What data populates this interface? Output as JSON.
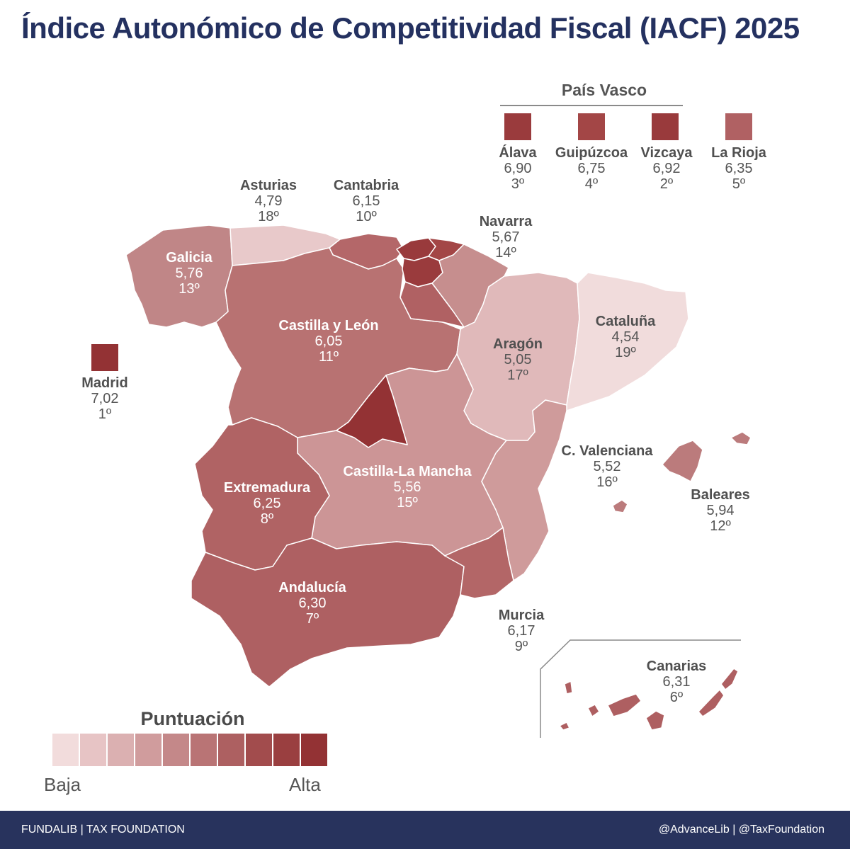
{
  "title": "Índice Autonómico de Competitividad Fiscal (IACF) 2025",
  "pais_vasco": {
    "title": "País Vasco",
    "provinces": [
      {
        "name": "Álava",
        "score": "6,90",
        "rank": "3º",
        "color": "#9a3b3d"
      },
      {
        "name": "Guipúzcoa",
        "score": "6,75",
        "rank": "4º",
        "color": "#a34646"
      },
      {
        "name": "Vizcaya",
        "score": "6,92",
        "rank": "2º",
        "color": "#993a3c"
      },
      {
        "name": "La Rioja",
        "score": "6,35",
        "rank": "5º",
        "color": "#b06163"
      }
    ]
  },
  "regions": {
    "galicia": {
      "name": "Galicia",
      "score": "5,76",
      "rank": "13º",
      "color": "#c08687"
    },
    "asturias": {
      "name": "Asturias",
      "score": "4,79",
      "rank": "18º",
      "color": "#e8c9ca"
    },
    "cantabria": {
      "name": "Cantabria",
      "score": "6,15",
      "rank": "10º",
      "color": "#b46769"
    },
    "navarra": {
      "name": "Navarra",
      "score": "5,67",
      "rank": "14º",
      "color": "#c68e8e"
    },
    "cyl": {
      "name": "Castilla y León",
      "score": "6,05",
      "rank": "11º",
      "color": "#b87272"
    },
    "aragon": {
      "name": "Aragón",
      "score": "5,05",
      "rank": "17º",
      "color": "#e0b9ba"
    },
    "cataluna": {
      "name": "Cataluña",
      "score": "4,54",
      "rank": "19º",
      "color": "#f1dcdc"
    },
    "madrid": {
      "name": "Madrid",
      "score": "7,02",
      "rank": "1º",
      "color": "#933234"
    },
    "clm": {
      "name": "Castilla-La Mancha",
      "score": "5,56",
      "rank": "15º",
      "color": "#cc9596"
    },
    "extremadura": {
      "name": "Extremadura",
      "score": "6,25",
      "rank": "8º",
      "color": "#b06364"
    },
    "valenciana": {
      "name": "C. Valenciana",
      "score": "5,52",
      "rank": "16º",
      "color": "#cf9b9b"
    },
    "baleares": {
      "name": "Baleares",
      "score": "5,94",
      "rank": "12º",
      "color": "#bb7b7c"
    },
    "andalucia": {
      "name": "Andalucía",
      "score": "6,30",
      "rank": "7º",
      "color": "#ae6062"
    },
    "murcia": {
      "name": "Murcia",
      "score": "6,17",
      "rank": "9º",
      "color": "#b36667"
    },
    "canarias": {
      "name": "Canarias",
      "score": "6,31",
      "rank": "6º",
      "color": "#ae5f61"
    }
  },
  "legend": {
    "title": "Puntuación",
    "low": "Baja",
    "high": "Alta",
    "colors": [
      "#f2dcdc",
      "#e7c4c5",
      "#dbb0b1",
      "#d09c9d",
      "#c48889",
      "#b97475",
      "#ad6061",
      "#a24c4d",
      "#9a3f40",
      "#933234"
    ]
  },
  "footer": {
    "left": "FUNDALIB | TAX FOUNDATION",
    "right": "@AdvanceLib | @TaxFoundation"
  }
}
